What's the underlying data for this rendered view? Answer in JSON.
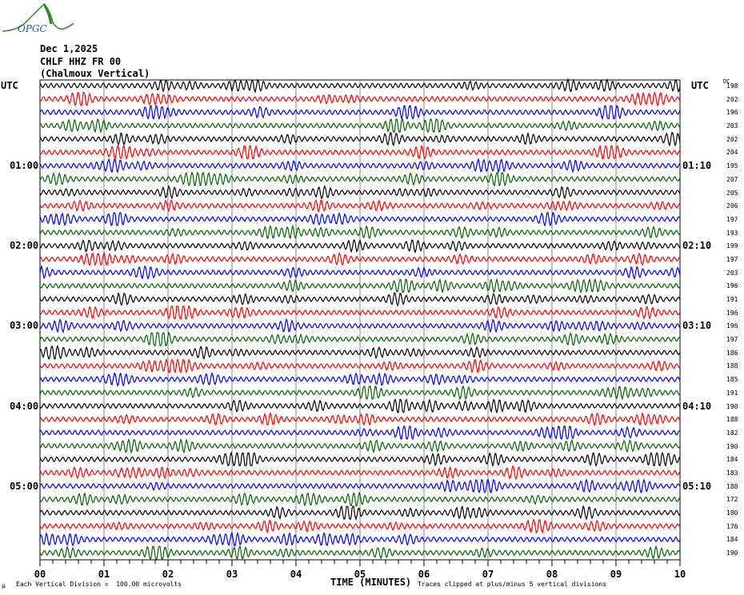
{
  "logo": {
    "text": "OPGC"
  },
  "header": {
    "date": "Dec 1,2025",
    "channel": "CHLF HHZ FR 00",
    "station": "(Chalmoux Vertical)"
  },
  "left_axis": {
    "title": "UTC",
    "labels": [
      {
        "row": 6,
        "text": "01:00"
      },
      {
        "row": 12,
        "text": "02:00"
      },
      {
        "row": 18,
        "text": "03:00"
      },
      {
        "row": 24,
        "text": "04:00"
      },
      {
        "row": 30,
        "text": "05:00"
      }
    ]
  },
  "right_axis": {
    "title": "UTC",
    "dc_title": "DC",
    "labels": [
      {
        "row": 6,
        "text": "01:10"
      },
      {
        "row": 12,
        "text": "02:10"
      },
      {
        "row": 18,
        "text": "03:10"
      },
      {
        "row": 24,
        "text": "04:10"
      },
      {
        "row": 30,
        "text": "05:10"
      }
    ]
  },
  "dc_values": [
    "198",
    "202",
    "196",
    "203",
    "202",
    "204",
    "195",
    "207",
    "205",
    "206",
    "197",
    "193",
    "199",
    "197",
    "203",
    "196",
    "191",
    "196",
    "196",
    "197",
    "186",
    "188",
    "185",
    "191",
    "190",
    "188",
    "182",
    "190",
    "184",
    "183",
    "188",
    "172",
    "180",
    "176",
    "184",
    "190"
  ],
  "trace_colors": [
    "#000000",
    "#ff0000",
    "#0000ff",
    "#006400"
  ],
  "chart_data": {
    "type": "line",
    "xlabel": "TIME (MINUTES)",
    "x_ticks": [
      "00",
      "01",
      "02",
      "03",
      "04",
      "05",
      "06",
      "07",
      "08",
      "09",
      "10"
    ],
    "xlim": [
      0,
      10
    ],
    "rows": 36,
    "row_minutes": 10,
    "grid": true
  },
  "footer": {
    "mu": "µ",
    "scale": "Each Vertical Division =  100.00 microvolts",
    "clip": "Traces clipped at plus/minus 5 vertical divisions"
  }
}
